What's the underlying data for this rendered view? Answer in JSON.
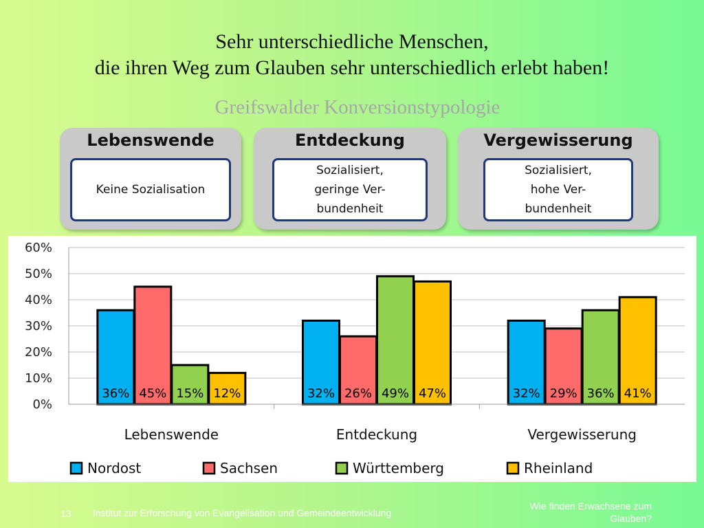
{
  "slide": {
    "title_line1": "Sehr unterschiedliche Menschen,",
    "title_line2": "die ihren Weg zum Glauben sehr unterschiedlich erlebt haben!",
    "subtitle": "Greifswalder Konversionstypologie",
    "categories": [
      {
        "title": "Lebenswende",
        "description": "Keine Sozialisation"
      },
      {
        "title": "Entdeckung",
        "description": "Sozialisiert,\ngeringe Ver-\nbundenheit"
      },
      {
        "title": "Vergewisserung",
        "description": "Sozialisiert,\nhohe Ver-\nbundenheit"
      }
    ]
  },
  "chart_data": {
    "type": "bar",
    "categories": [
      "Lebenswende",
      "Entdeckung",
      "Vergewisserung"
    ],
    "series": [
      {
        "name": "Nordost",
        "color": "#00b0f0",
        "values": [
          36,
          32,
          32
        ],
        "labels": [
          "36%",
          "32%",
          "32%"
        ]
      },
      {
        "name": "Sachsen",
        "color": "#ff6b6b",
        "values": [
          45,
          26,
          29
        ],
        "labels": [
          "45%",
          "26%",
          "29%"
        ]
      },
      {
        "name": "Württemberg",
        "color": "#92d050",
        "values": [
          15,
          49,
          36
        ],
        "labels": [
          "15%",
          "49%",
          "36%"
        ]
      },
      {
        "name": "Rheinland",
        "color": "#ffc000",
        "values": [
          12,
          47,
          41
        ],
        "labels": [
          "12%",
          "47%",
          "41%"
        ]
      }
    ],
    "y_ticks": [
      "0%",
      "10%",
      "20%",
      "30%",
      "40%",
      "50%",
      "60%"
    ],
    "ylim": [
      0,
      60
    ],
    "grid": true,
    "legend_position": "bottom",
    "data_labels": "inside-bottom"
  },
  "footer": {
    "page_number": "13",
    "institute": "Institut zur Erforschung von Evangelisation und Gemeindeentwicklung",
    "right_text": "Wie finden Erwachsene zum Glauben?"
  }
}
